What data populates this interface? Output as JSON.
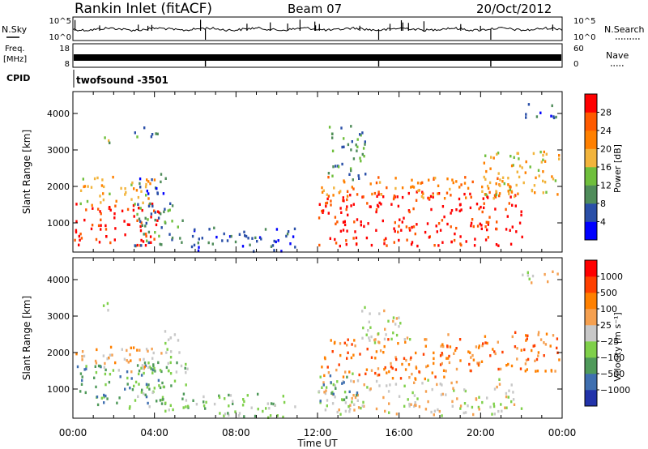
{
  "header": {
    "station": "Rankin Inlet (fitACF)",
    "beam": "Beam 07",
    "date": "20/Oct/2012"
  },
  "strip_panels": {
    "nsky": {
      "label": "N.Sky",
      "ticks": [
        "10^5",
        "10^0"
      ]
    },
    "nsearch": {
      "label": "N.Search",
      "ticks": [
        "10^5",
        "10^0"
      ]
    },
    "freq": {
      "label_line1": "Freq.",
      "label_line2": "[MHz]",
      "ticks": [
        "18",
        "8"
      ]
    },
    "nave": {
      "label": "Nave",
      "ticks": [
        "60",
        "0"
      ]
    },
    "cpid": {
      "label": "CPID",
      "value": "twofsound -3501"
    }
  },
  "colors": {
    "power": [
      "#0000ff",
      "#2a4fa8",
      "#4f8c5a",
      "#6fbf3c",
      "#f2b43c",
      "#ff8000",
      "#ff5a00",
      "#ff0000"
    ],
    "velocity": [
      "#2233aa",
      "#3f6fb0",
      "#4f9a5a",
      "#7fd04a",
      "#c8c8c8",
      "#f5a050",
      "#ff8000",
      "#ff4000",
      "#ff0000"
    ]
  },
  "chart_data": [
    {
      "type": "heatmap",
      "quantity": "power",
      "ylabel": "Slant Range [km]",
      "ylim": [
        200,
        4600
      ],
      "yticks": [
        "1000",
        "2000",
        "3000",
        "4000"
      ],
      "xlim": [
        0,
        24
      ],
      "colorbar": {
        "label": "Power [dB]",
        "ticks": [
          "28",
          "24",
          "20",
          "16",
          "12",
          "8",
          "4"
        ]
      },
      "regions": [
        {
          "t0": 0.0,
          "t1": 4.2,
          "r0": 400,
          "r1": 1600,
          "color_index": 7
        },
        {
          "t0": 0.0,
          "t1": 4.0,
          "r0": 1500,
          "r1": 2300,
          "color_index": 4
        },
        {
          "t0": 3.0,
          "t1": 5.5,
          "r0": 400,
          "r1": 1700,
          "color_index": 2
        },
        {
          "t0": 3.2,
          "t1": 4.6,
          "r0": 1700,
          "r1": 2400,
          "color_index": 1
        },
        {
          "t0": 5.5,
          "t1": 11.0,
          "r0": 250,
          "r1": 900,
          "color_index": 1
        },
        {
          "t0": 1.2,
          "t1": 1.8,
          "r0": 3100,
          "r1": 3400,
          "color_index": 3
        },
        {
          "t0": 3.0,
          "t1": 4.2,
          "r0": 3300,
          "r1": 3700,
          "color_index": 2
        },
        {
          "t0": 12.0,
          "t1": 22.0,
          "r0": 400,
          "r1": 1900,
          "color_index": 7
        },
        {
          "t0": 12.0,
          "t1": 22.0,
          "r0": 1700,
          "r1": 2300,
          "color_index": 5
        },
        {
          "t0": 12.5,
          "t1": 14.5,
          "r0": 2200,
          "r1": 3700,
          "color_index": 2
        },
        {
          "t0": 20.0,
          "t1": 24.0,
          "r0": 1800,
          "r1": 3000,
          "color_index": 4
        },
        {
          "t0": 22.0,
          "t1": 24.0,
          "r0": 3900,
          "r1": 4300,
          "color_index": 1
        }
      ]
    },
    {
      "type": "heatmap",
      "quantity": "velocity",
      "ylabel": "Slant Range [km]",
      "ylim": [
        200,
        4600
      ],
      "yticks": [
        "1000",
        "2000",
        "3000",
        "4000"
      ],
      "xlim": [
        0,
        24
      ],
      "xlabel": "Time UT",
      "xticks": [
        "00:00",
        "04:00",
        "08:00",
        "12:00",
        "16:00",
        "20:00",
        "00:00"
      ],
      "colorbar": {
        "label": "Velocity [m s⁻¹]",
        "ticks": [
          "1000",
          "500",
          "100",
          "25",
          "−25",
          "−100",
          "−500",
          "−1000"
        ]
      },
      "regions": [
        {
          "t0": 0.0,
          "t1": 4.5,
          "r0": 500,
          "r1": 1700,
          "color_index": 2
        },
        {
          "t0": 0.0,
          "t1": 4.0,
          "r0": 1500,
          "r1": 2200,
          "color_index": 5
        },
        {
          "t0": 3.0,
          "t1": 5.6,
          "r0": 400,
          "r1": 1800,
          "color_index": 3
        },
        {
          "t0": 4.0,
          "t1": 5.2,
          "r0": 1900,
          "r1": 2700,
          "color_index": 4
        },
        {
          "t0": 5.5,
          "t1": 11.0,
          "r0": 250,
          "r1": 900,
          "color_index": 3
        },
        {
          "t0": 1.2,
          "t1": 1.8,
          "r0": 3100,
          "r1": 3400,
          "color_index": 3
        },
        {
          "t0": 12.0,
          "t1": 22.0,
          "r0": 300,
          "r1": 1300,
          "color_index": 4
        },
        {
          "t0": 12.0,
          "t1": 18.5,
          "r0": 1300,
          "r1": 2400,
          "color_index": 6
        },
        {
          "t0": 12.0,
          "t1": 14.0,
          "r0": 600,
          "r1": 1500,
          "color_index": 2
        },
        {
          "t0": 14.0,
          "t1": 16.5,
          "r0": 2300,
          "r1": 3300,
          "color_index": 4
        },
        {
          "t0": 18.0,
          "t1": 24.0,
          "r0": 1500,
          "r1": 2600,
          "color_index": 6
        },
        {
          "t0": 22.0,
          "t1": 24.0,
          "r0": 3900,
          "r1": 4300,
          "color_index": 4
        }
      ]
    }
  ]
}
